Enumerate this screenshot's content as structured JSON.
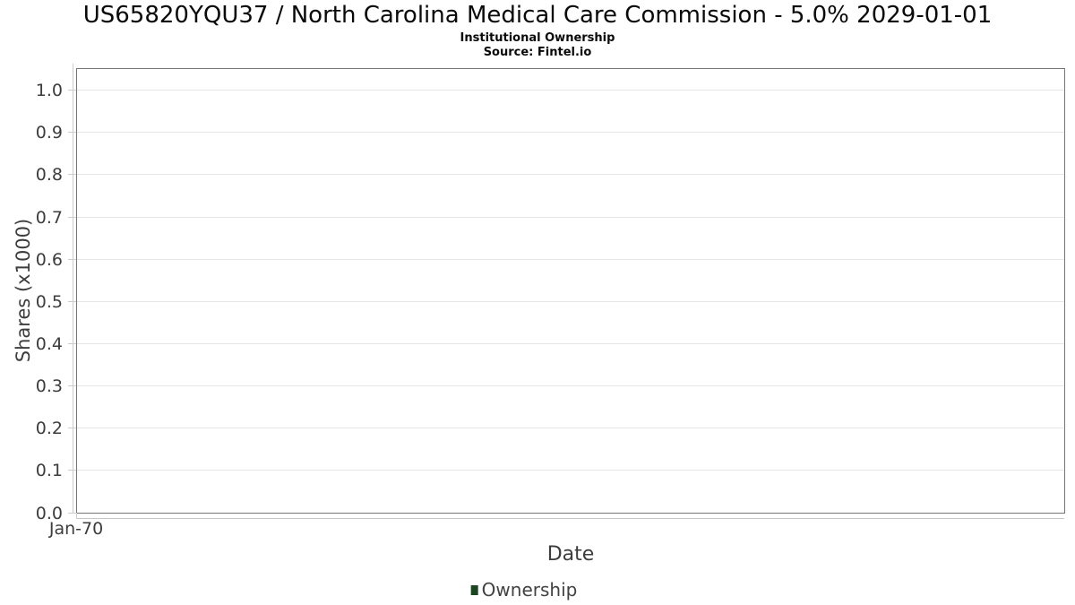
{
  "header": {
    "title": "US65820YQU37 / North Carolina Medical Care Commission - 5.0% 2029-01-01",
    "subtitle": "Institutional Ownership",
    "source": "Source: Fintel.io"
  },
  "chart_data": {
    "type": "line",
    "title": "US65820YQU37 / North Carolina Medical Care Commission - 5.0% 2029-01-01",
    "subtitle": "Institutional Ownership",
    "source": "Source: Fintel.io",
    "xlabel": "Date",
    "ylabel": "Shares (x1000)",
    "ylim": [
      0.0,
      1.05
    ],
    "grid": "horizontal-only",
    "legend_position": "bottom-center",
    "y_ticks": [
      {
        "label": "0.0",
        "value": 0.0
      },
      {
        "label": "0.1",
        "value": 0.1
      },
      {
        "label": "0.2",
        "value": 0.2
      },
      {
        "label": "0.3",
        "value": 0.3
      },
      {
        "label": "0.4",
        "value": 0.4
      },
      {
        "label": "0.5",
        "value": 0.5
      },
      {
        "label": "0.6",
        "value": 0.6
      },
      {
        "label": "0.7",
        "value": 0.7
      },
      {
        "label": "0.8",
        "value": 0.8
      },
      {
        "label": "0.9",
        "value": 0.9
      },
      {
        "label": "1.0",
        "value": 1.0
      }
    ],
    "x_ticks": [
      {
        "label": "Jan-70",
        "position": 0.0
      }
    ],
    "series": [
      {
        "name": "Ownership",
        "color": "#1c4522",
        "values": []
      }
    ]
  },
  "colors": {
    "grid": "#e6e6e6",
    "plot_border": "#757575",
    "axis_line": "#cccccc",
    "tick_text": "#3d3d3d",
    "legend_marker": "#1c4522",
    "title_text": "#0a0a0a"
  }
}
